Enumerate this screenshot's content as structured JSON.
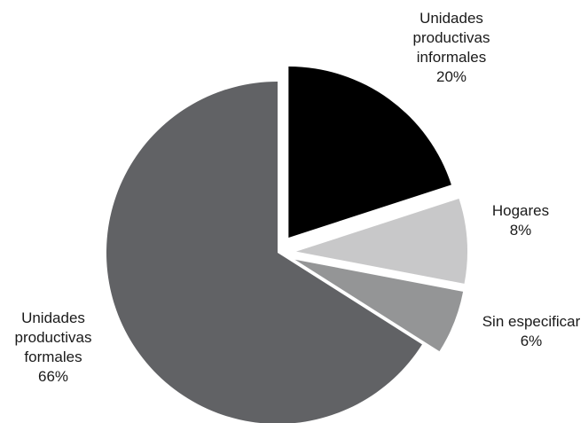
{
  "chart_data": {
    "type": "pie",
    "slices": [
      {
        "label_lines": [
          "Unidades",
          "productivas",
          "informales"
        ],
        "value": 20,
        "value_label": "20%",
        "color": "#000000",
        "exploded": true
      },
      {
        "label_lines": [
          "Hogares"
        ],
        "value": 8,
        "value_label": "8%",
        "color": "#c8c8c9",
        "exploded": true
      },
      {
        "label_lines": [
          "Sin especificar"
        ],
        "value": 6,
        "value_label": "6%",
        "color": "#949596",
        "exploded": true
      },
      {
        "label_lines": [
          "Unidades",
          "productivas",
          "formales"
        ],
        "value": 66,
        "value_label": "66%",
        "color": "#616265",
        "exploded": false
      }
    ],
    "start_angle": "12 o'clock",
    "direction": "clockwise",
    "legend": "none",
    "labels_placement": "outside"
  }
}
